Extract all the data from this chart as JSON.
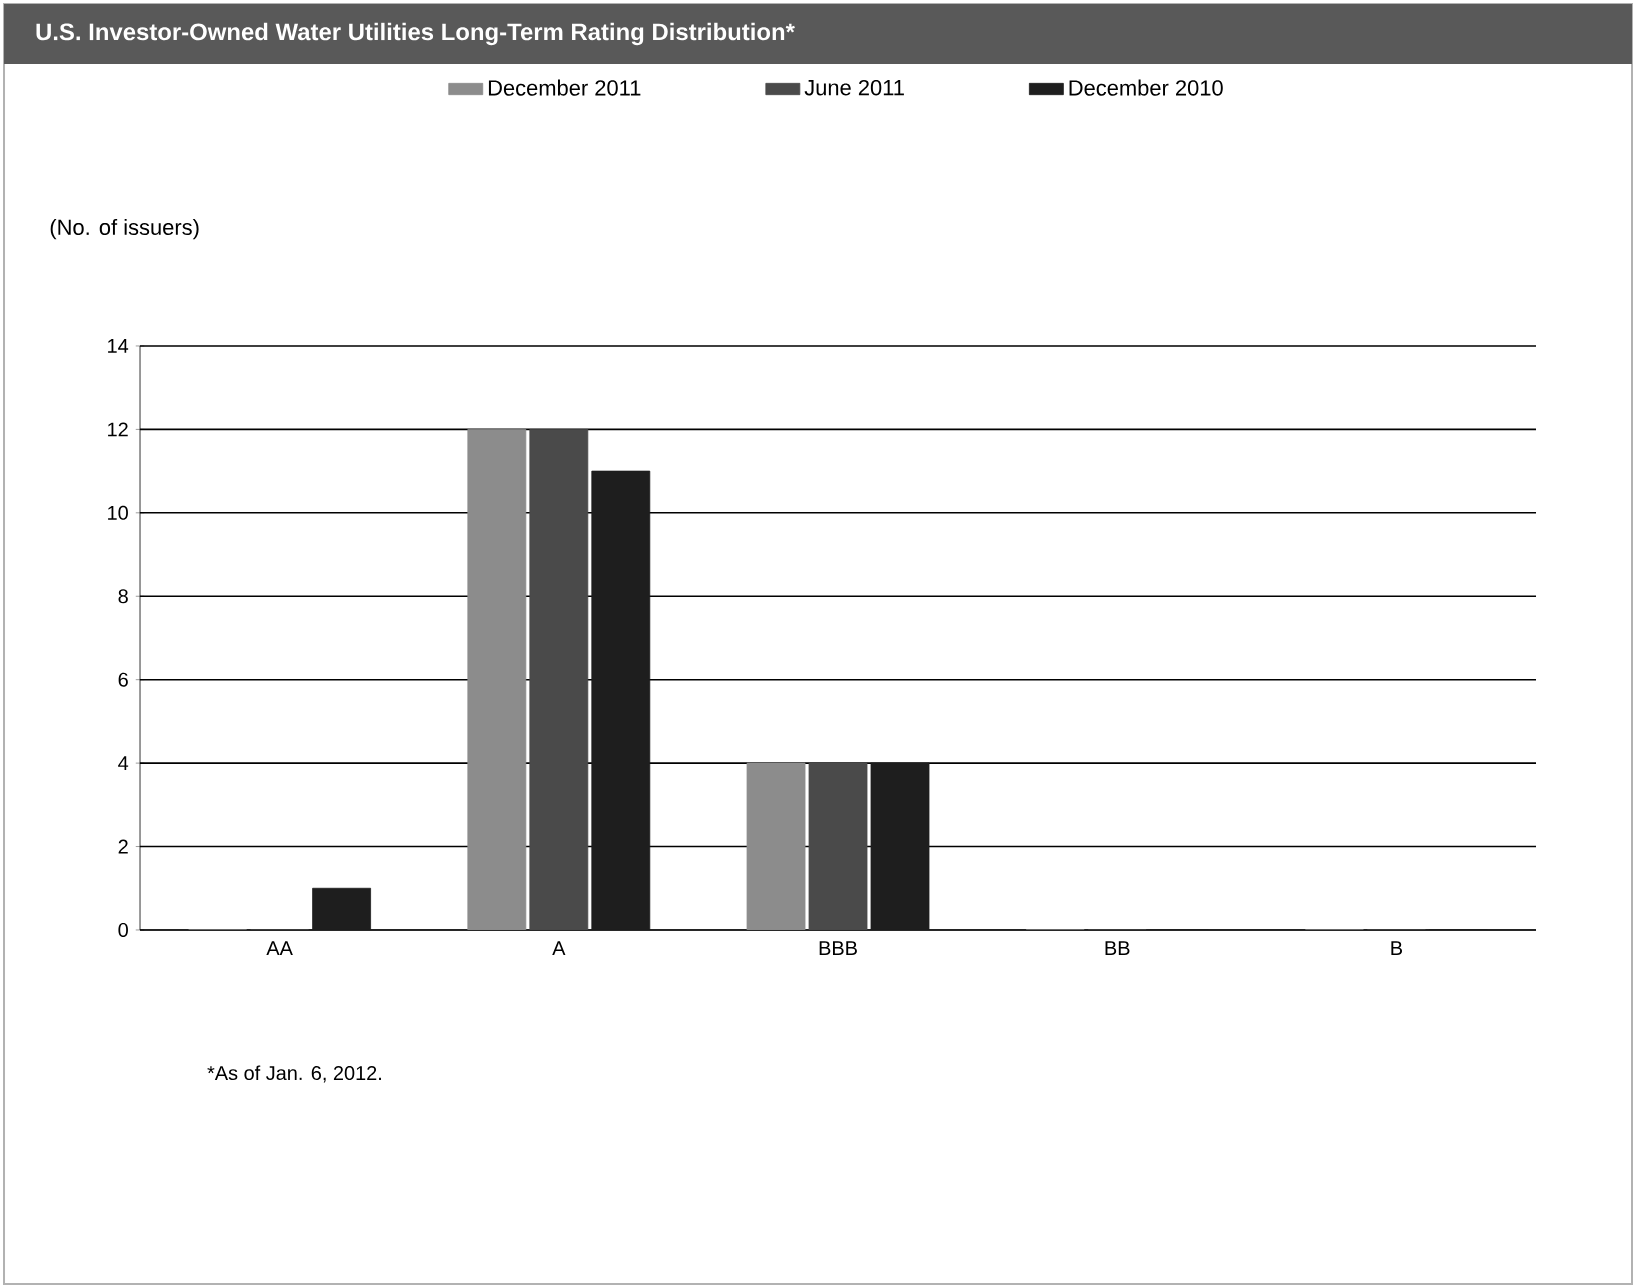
{
  "chart_data": {
    "type": "bar",
    "title": "U.S. Investor-Owned Water Utilities Long-Term Rating Distribution*",
    "ylabel": "(No. of issuers)",
    "categories": [
      "AA",
      "A",
      "BBB",
      "BB",
      "B"
    ],
    "series": [
      {
        "name": "December 2011",
        "color": "#8c8c8c",
        "values": [
          0,
          12,
          4,
          0,
          0
        ]
      },
      {
        "name": "June 2011",
        "color": "#4a4a4a",
        "values": [
          0,
          12,
          4,
          0,
          0
        ]
      },
      {
        "name": "December 2010",
        "color": "#1e1e1e",
        "values": [
          1,
          11,
          4,
          0,
          0
        ]
      }
    ],
    "ylim": [
      0,
      14
    ],
    "yticks": [
      0,
      2,
      4,
      6,
      8,
      10,
      12,
      14
    ],
    "grid": "y",
    "legend": "top",
    "annotations": [
      "*As of Jan. 6, 2012."
    ]
  }
}
